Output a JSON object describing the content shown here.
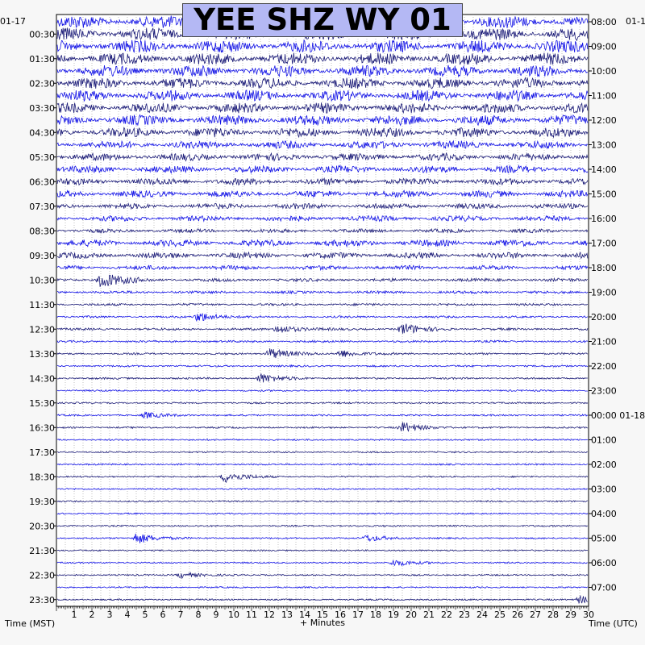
{
  "title": "YEE SHZ WY 01",
  "date_left": "01-17",
  "date_right": "01-1",
  "xlabel": "+ Minutes",
  "left_axis_label": "Time (MST)",
  "right_axis_label": "Time (UTC)",
  "colors": {
    "trace_a": "#1c1c78",
    "trace_b": "#1414e6",
    "grid": "#9a9a9a",
    "title_bg": "#b4b8f4",
    "background": "#ffffff"
  },
  "chart_data": {
    "type": "helicorder",
    "xlim": [
      0,
      30
    ],
    "x_tick_labels": [
      "1",
      "2",
      "3",
      "4",
      "5",
      "6",
      "7",
      "8",
      "9",
      "10",
      "11",
      "12",
      "13",
      "14",
      "15",
      "16",
      "17",
      "18",
      "19",
      "20",
      "21",
      "22",
      "23",
      "24",
      "25",
      "26",
      "27",
      "28",
      "29",
      "30"
    ],
    "left_tick_labels": [
      "00:30",
      "01:30",
      "02:30",
      "03:30",
      "04:30",
      "05:30",
      "06:30",
      "07:30",
      "08:30",
      "09:30",
      "10:30",
      "11:30",
      "12:30",
      "13:30",
      "14:30",
      "15:30",
      "16:30",
      "17:30",
      "18:30",
      "19:30",
      "20:30",
      "21:30",
      "22:30",
      "23:30"
    ],
    "right_tick_labels": [
      "08:00",
      "09:00",
      "10:00",
      "11:00",
      "12:00",
      "13:00",
      "14:00",
      "15:00",
      "16:00",
      "17:00",
      "18:00",
      "19:00",
      "20:00",
      "21:00",
      "22:00",
      "23:00",
      "00:00 01-18",
      "01:00",
      "02:00",
      "03:00",
      "04:00",
      "05:00",
      "06:00",
      "07:00"
    ],
    "rows_per_hour": 2,
    "row_count": 48,
    "row_noise_amplitude": [
      1.0,
      1.0,
      1.0,
      0.95,
      0.9,
      0.85,
      0.85,
      0.8,
      0.8,
      0.75,
      0.6,
      0.55,
      0.55,
      0.5,
      0.5,
      0.4,
      0.4,
      0.25,
      0.5,
      0.45,
      0.3,
      0.2,
      0.15,
      0.12,
      0.1,
      0.12,
      0.1,
      0.08,
      0.08,
      0.08,
      0.06,
      0.06,
      0.06,
      0.06,
      0.05,
      0.05,
      0.06,
      0.05,
      0.05,
      0.05,
      0.04,
      0.05,
      0.04,
      0.04,
      0.04,
      0.04,
      0.04,
      0.05
    ],
    "events": [
      {
        "row": 21,
        "minute": 2.5,
        "amplitude": 0.9
      },
      {
        "row": 24,
        "minute": 8,
        "amplitude": 0.5
      },
      {
        "row": 25,
        "minute": 12.5,
        "amplitude": 0.45
      },
      {
        "row": 25,
        "minute": 19.5,
        "amplitude": 0.6
      },
      {
        "row": 27,
        "minute": 12,
        "amplitude": 0.6
      },
      {
        "row": 27,
        "minute": 16,
        "amplitude": 0.4
      },
      {
        "row": 29,
        "minute": 11.5,
        "amplitude": 0.5
      },
      {
        "row": 32,
        "minute": 5,
        "amplitude": 0.3
      },
      {
        "row": 33,
        "minute": 19.5,
        "amplitude": 0.55
      },
      {
        "row": 37,
        "minute": 9.5,
        "amplitude": 0.6
      },
      {
        "row": 42,
        "minute": 4.5,
        "amplitude": 0.6
      },
      {
        "row": 42,
        "minute": 17.5,
        "amplitude": 0.35
      },
      {
        "row": 44,
        "minute": 19,
        "amplitude": 0.35
      },
      {
        "row": 45,
        "minute": 7,
        "amplitude": 0.3
      },
      {
        "row": 47,
        "minute": 29.5,
        "amplitude": 0.4
      }
    ]
  }
}
